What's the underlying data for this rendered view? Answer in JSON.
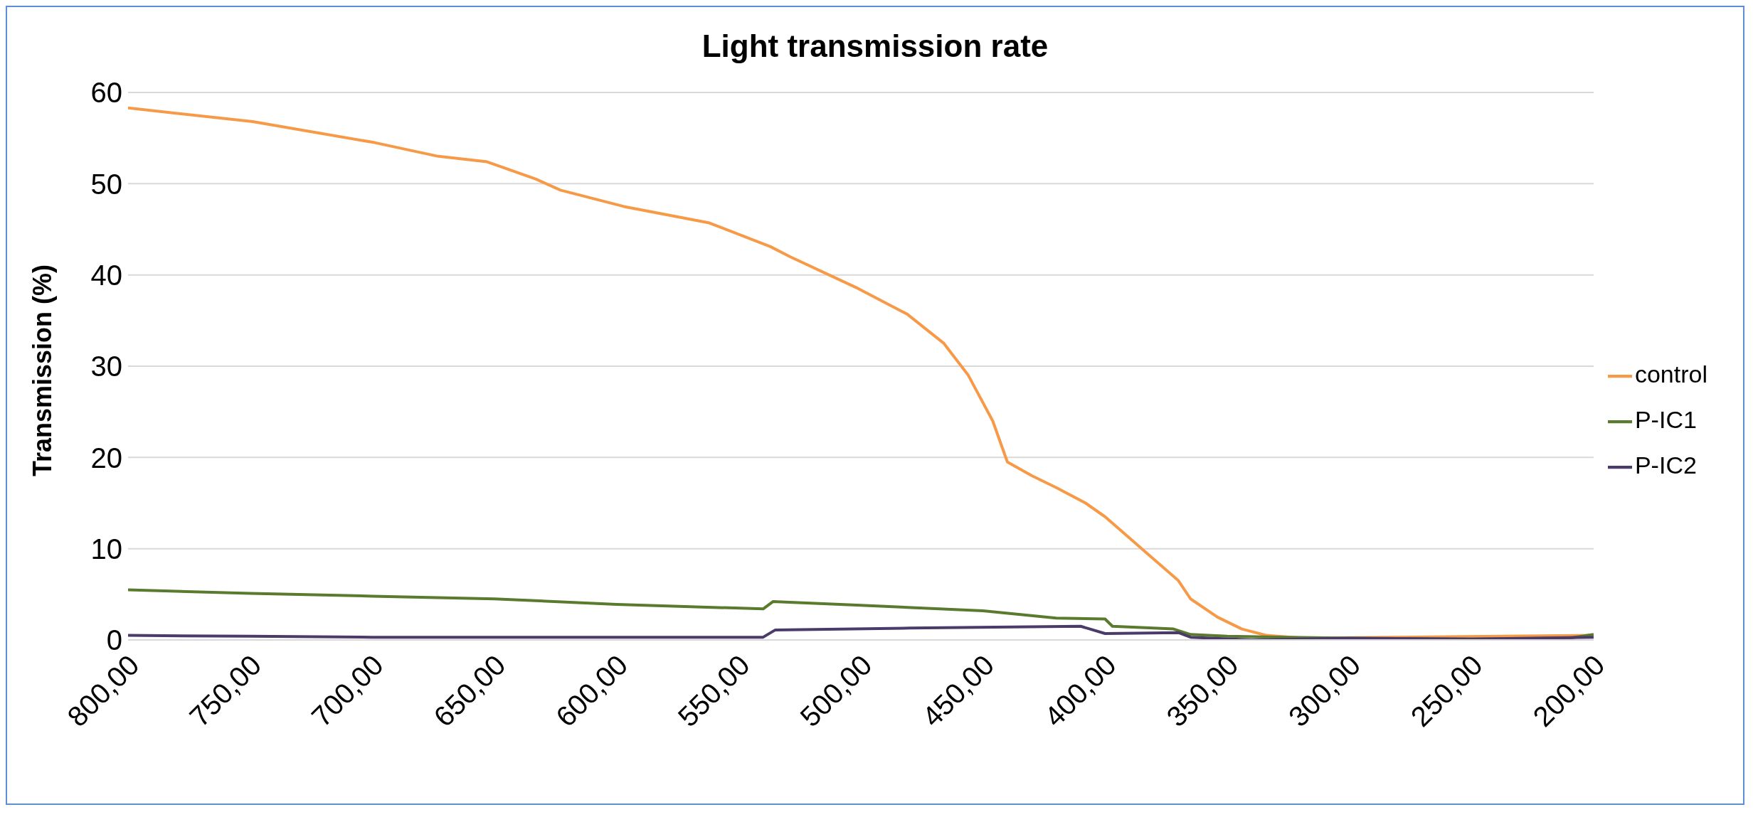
{
  "chart_data": {
    "type": "line",
    "title": "Light transmission rate",
    "ylabel": "Transmission (%)",
    "xlim": [
      800,
      200
    ],
    "xticks": [
      {
        "value": 800,
        "label": "800,00"
      },
      {
        "value": 750,
        "label": "750,00"
      },
      {
        "value": 700,
        "label": "700,00"
      },
      {
        "value": 650,
        "label": "650,00"
      },
      {
        "value": 600,
        "label": "600,00"
      },
      {
        "value": 550,
        "label": "550,00"
      },
      {
        "value": 500,
        "label": "500,00"
      },
      {
        "value": 450,
        "label": "450,00"
      },
      {
        "value": 400,
        "label": "400,00"
      },
      {
        "value": 350,
        "label": "350,00"
      },
      {
        "value": 300,
        "label": "300,00"
      },
      {
        "value": 250,
        "label": "250,00"
      },
      {
        "value": 200,
        "label": "200,00"
      }
    ],
    "ylim": [
      0,
      60
    ],
    "yticks": [
      0,
      10,
      20,
      30,
      40,
      50,
      60
    ],
    "grid": "y",
    "legend": "right",
    "marker": "none",
    "series": [
      {
        "name": "control",
        "color": "#f79a48",
        "x": [
          800,
          749,
          699,
          673,
          653,
          633,
          623,
          597,
          562,
          537,
          529,
          501,
          481,
          466,
          456,
          446,
          440,
          430,
          420,
          408,
          400,
          385,
          370,
          365,
          354,
          344,
          334,
          319,
          200
        ],
        "values": [
          58.3,
          56.8,
          54.5,
          53.0,
          52.4,
          50.5,
          49.3,
          47.5,
          45.7,
          43.1,
          42.0,
          38.5,
          35.7,
          32.5,
          29.0,
          24.0,
          19.5,
          18.0,
          16.7,
          15.0,
          13.5,
          10.0,
          6.5,
          4.5,
          2.5,
          1.2,
          0.5,
          0.2,
          0.5
        ]
      },
      {
        "name": "P-IC1",
        "color": "#5a7a2e",
        "x": [
          800,
          750,
          700,
          650,
          600,
          540,
          536,
          500,
          450,
          420,
          400,
          397,
          372,
          365,
          350,
          300,
          250,
          210,
          200
        ],
        "values": [
          5.5,
          5.1,
          4.8,
          4.5,
          3.9,
          3.4,
          4.2,
          3.8,
          3.2,
          2.4,
          2.3,
          1.5,
          1.2,
          0.6,
          0.4,
          0.2,
          0.1,
          0.2,
          0.6
        ]
      },
      {
        "name": "P-IC2",
        "color": "#4b3b6b",
        "x": [
          800,
          750,
          700,
          540,
          535,
          480,
          410,
          400,
          370,
          365,
          340,
          300,
          250,
          200
        ],
        "values": [
          0.5,
          0.4,
          0.3,
          0.3,
          1.1,
          1.3,
          1.5,
          0.7,
          0.8,
          0.3,
          0.0,
          0.2,
          0.1,
          0.3
        ]
      }
    ]
  }
}
